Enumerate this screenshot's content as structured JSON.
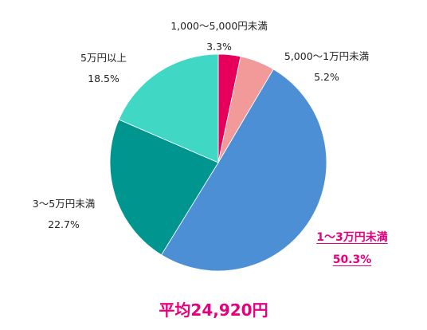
{
  "chart_data": {
    "type": "pie",
    "start_angle": "12 o'clock",
    "direction": "clockwise",
    "slices": [
      {
        "label": "1,000〜5,000円未満",
        "value": 3.3,
        "value_label": "3.3%",
        "color": "#e6005c",
        "highlight": false
      },
      {
        "label": "5,000〜1万円未満",
        "value": 5.2,
        "value_label": "5.2%",
        "color": "#f29a9a",
        "highlight": false
      },
      {
        "label": "1〜3万円未満",
        "value": 50.3,
        "value_label": "50.3%",
        "color": "#4d8fd4",
        "highlight": true
      },
      {
        "label": "3〜5万円未満",
        "value": 22.7,
        "value_label": "22.7%",
        "color": "#00968f",
        "highlight": false
      },
      {
        "label": "5万円以上",
        "value": 18.5,
        "value_label": "18.5%",
        "color": "#40d8c4",
        "highlight": false
      }
    ]
  },
  "summary": {
    "average_text": "平均24,920円"
  },
  "colors": {
    "highlight_text": "#e6007e",
    "label_text": "#222222",
    "slice_border": "#ffffff"
  }
}
